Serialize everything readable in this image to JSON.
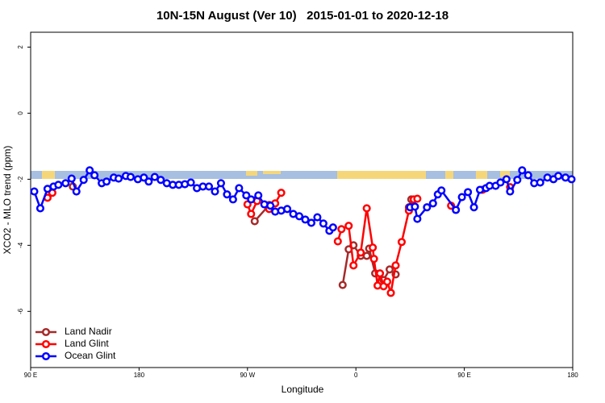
{
  "chart_data": {
    "type": "line",
    "title": "10N-15N August (Ver 10)   2015-01-01 to 2020-12-18",
    "xlabel": "Longitude",
    "ylabel": "XCO2 - MLO trend (ppm)",
    "xlim": [
      90,
      540
    ],
    "ylim": [
      -7.7,
      2.45
    ],
    "xticks": [
      {
        "value": 90,
        "label": "90 E"
      },
      180,
      {
        "value": 270,
        "label": "90 W"
      },
      {
        "value": 360,
        "label": "0"
      },
      {
        "value": 450,
        "label": "90 E"
      },
      {
        "value": 540,
        "label": "180"
      }
    ],
    "yticks": [
      -6,
      -4,
      -2,
      0,
      2
    ],
    "legend": "bottomleft",
    "series": [
      {
        "name": "Land Nadir",
        "color": "#a52a2a",
        "x": [
          125,
          null,
          276,
          288,
          null,
          349,
          354,
          358,
          364,
          369,
          371,
          376,
          383,
          388,
          393,
          null,
          404,
          406
        ],
        "values": [
          -2.22,
          null,
          -3.27,
          -2.78,
          null,
          -5.2,
          -4.12,
          -4,
          -4.32,
          -4.32,
          -4.1,
          -4.85,
          -5.05,
          -4.73,
          -4.88,
          null,
          -2.85,
          -2.61
        ]
      },
      {
        "name": "Land Glint",
        "color": "#ff0000",
        "x": [
          104,
          108,
          null,
          270,
          273,
          278,
          null,
          288,
          293,
          298,
          null,
          345,
          348,
          354,
          358,
          364,
          369,
          374,
          375,
          378,
          380,
          383,
          386,
          389,
          393,
          398,
          404,
          408,
          411,
          null,
          439,
          null,
          465,
          null,
          488
        ],
        "values": [
          -2.56,
          -2.41,
          null,
          -2.76,
          -3.05,
          -2.66,
          null,
          -2.9,
          -2.73,
          -2.41,
          null,
          -3.88,
          -3.51,
          -3.41,
          -4.61,
          -4.22,
          -2.88,
          -4.07,
          -4.41,
          -5.22,
          -4.85,
          -5.24,
          -5.1,
          -5.44,
          -4.61,
          -3.9,
          -2.95,
          -2.61,
          -2.59,
          null,
          -2.8,
          null,
          -2.32,
          null,
          -2.24
        ]
      },
      {
        "name": "Ocean Glint",
        "color": "#0000ff",
        "x": [
          93,
          98,
          104,
          109,
          113,
          119,
          124,
          128,
          134,
          139,
          143,
          149,
          153,
          159,
          163,
          169,
          173,
          179,
          184,
          188,
          193,
          198,
          203,
          208,
          213,
          218,
          223,
          228,
          233,
          238,
          243,
          248,
          253,
          258,
          263,
          269,
          273,
          279,
          284,
          289,
          293,
          298,
          303,
          308,
          313,
          318,
          323,
          328,
          333,
          338,
          341,
          null,
          405,
          409,
          411,
          419,
          424,
          428,
          431,
          443,
          448,
          453,
          458,
          463,
          468,
          471,
          476,
          480,
          485,
          488,
          494,
          498,
          503,
          508,
          513,
          519,
          524,
          528,
          534,
          539
        ],
        "values": [
          -2.37,
          -2.88,
          -2.29,
          -2.22,
          -2.17,
          -2.12,
          -1.98,
          -2.37,
          -2.02,
          -1.73,
          -1.88,
          -2.12,
          -2.07,
          -1.95,
          -1.98,
          -1.9,
          -1.93,
          -2,
          -1.95,
          -2.07,
          -1.93,
          -2.02,
          -2.12,
          -2.17,
          -2.17,
          -2.15,
          -2.1,
          -2.27,
          -2.22,
          -2.22,
          -2.37,
          -2.12,
          -2.46,
          -2.61,
          -2.27,
          -2.49,
          -2.61,
          -2.49,
          -2.76,
          -2.8,
          -2.98,
          -2.95,
          -2.9,
          -3.05,
          -3.12,
          -3.22,
          -3.32,
          -3.15,
          -3.34,
          -3.56,
          -3.46,
          null,
          -2.85,
          -2.83,
          -3.2,
          -2.85,
          -2.73,
          -2.46,
          -2.34,
          -2.93,
          -2.54,
          -2.39,
          -2.85,
          -2.32,
          -2.27,
          -2.2,
          -2.2,
          -2.1,
          -2,
          -2.37,
          -2.02,
          -1.73,
          -1.88,
          -2.12,
          -2.1,
          -1.95,
          -2,
          -1.9,
          -1.95,
          -2
        ]
      }
    ]
  }
}
